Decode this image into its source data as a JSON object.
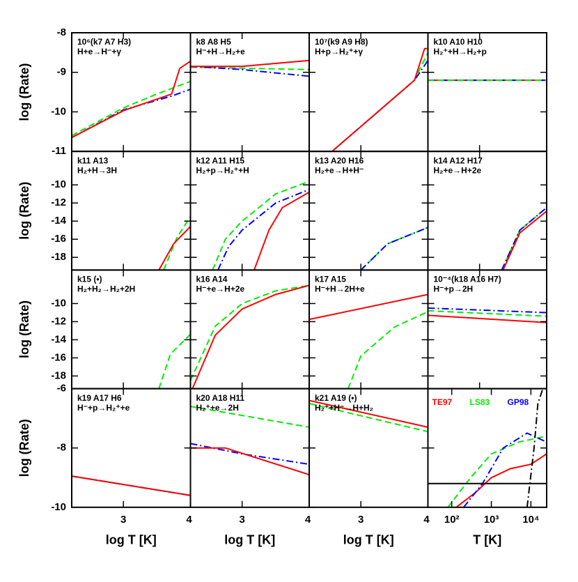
{
  "chart_data": [
    {
      "type": "line",
      "title": "10⁶(k7 A7 H3)",
      "subtitle": "H+e→H⁻+γ",
      "ylabel": "log (Rate)",
      "xlim": [
        2.23,
        4
      ],
      "xticks": [
        3,
        4
      ],
      "ylim": [
        -11,
        -8
      ],
      "yticks": [
        -8,
        -9,
        -10,
        -11
      ],
      "series": [
        {
          "color": "#00ee00",
          "dash": "dashed",
          "x": [
            2.23,
            3,
            3.5,
            4
          ],
          "values": [
            -10.6,
            -9.9,
            -9.55,
            -9.23
          ]
        },
        {
          "color": "#0000ff",
          "dash": "dashdot",
          "x": [
            2.23,
            3,
            3.72,
            4
          ],
          "values": [
            -10.65,
            -9.95,
            -9.6,
            -9.43
          ]
        },
        {
          "color": "#ff0000",
          "dash": "solid",
          "x": [
            2.23,
            3,
            3.72,
            3.84,
            4
          ],
          "values": [
            -10.65,
            -9.97,
            -9.55,
            -8.9,
            -8.72
          ]
        }
      ]
    },
    {
      "type": "line",
      "title": "k8 A8 H5",
      "subtitle": "H⁻+H→H₂+e",
      "xlim": [
        2.23,
        4
      ],
      "xticks": [
        3,
        4
      ],
      "ylim": [
        -11,
        -8
      ],
      "yticks": [
        -8,
        -9,
        -10,
        -11
      ],
      "series": [
        {
          "color": "#00ee00",
          "dash": "dashed",
          "x": [
            2.23,
            4
          ],
          "values": [
            -8.87,
            -8.93
          ]
        },
        {
          "color": "#0000ff",
          "dash": "dashdot",
          "x": [
            2.23,
            3,
            4
          ],
          "values": [
            -8.85,
            -8.93,
            -9.1
          ]
        },
        {
          "color": "#ff0000",
          "dash": "solid",
          "x": [
            2.23,
            3,
            4
          ],
          "values": [
            -8.85,
            -8.85,
            -8.7
          ]
        }
      ]
    },
    {
      "type": "line",
      "title": "10⁷(k9 A9 H8)",
      "subtitle": "H+p→H₂⁺+γ",
      "xlim": [
        2.23,
        4
      ],
      "xticks": [
        3,
        4
      ],
      "ylim": [
        -11,
        -8
      ],
      "yticks": [
        -8,
        -9,
        -10,
        -11
      ],
      "series": [
        {
          "color": "#00ee00",
          "dash": "dashed",
          "x": [
            2.57,
            3.8,
            4
          ],
          "values": [
            -11,
            -9.2,
            -8.5
          ]
        },
        {
          "color": "#0000ff",
          "dash": "dashdot",
          "x": [
            2.57,
            3.8,
            4
          ],
          "values": [
            -11,
            -9.2,
            -8.7
          ]
        },
        {
          "color": "#ff0000",
          "dash": "solid",
          "x": [
            2.57,
            3.8,
            3.95,
            4
          ],
          "values": [
            -11,
            -9.2,
            -8.4,
            -8.4
          ]
        }
      ]
    },
    {
      "type": "line",
      "title": "k10 A10 H10",
      "subtitle": "H₂⁺+H→H₂+p",
      "xlim": [
        2.23,
        4
      ],
      "xticks": [
        3,
        4
      ],
      "ylim": [
        -11,
        -8
      ],
      "yticks": [
        -8,
        -9,
        -10,
        -11
      ],
      "series": [
        {
          "color": "#ff0000",
          "dash": "solid",
          "x": [
            2.23,
            4
          ],
          "values": [
            -9.2,
            -9.2
          ]
        },
        {
          "color": "#0000ff",
          "dash": "dashdot",
          "x": [
            2.23,
            4
          ],
          "values": [
            -9.2,
            -9.2
          ]
        },
        {
          "color": "#00ee00",
          "dash": "dashed",
          "x": [
            2.23,
            4
          ],
          "values": [
            -9.2,
            -9.2
          ]
        }
      ]
    },
    {
      "type": "line",
      "title": "k11 A13",
      "subtitle": "H₂+H→3H",
      "ylabel": "log (Rate)",
      "xlim": [
        2.23,
        4
      ],
      "xticks": [
        3,
        4
      ],
      "ylim": [
        -19.4,
        -6.3
      ],
      "yticks": [
        -10,
        -12,
        -14,
        -16,
        -18
      ],
      "series": [
        {
          "color": "#00ee00",
          "dash": "dashed",
          "x": [
            3.6,
            3.8,
            4
          ],
          "values": [
            -19.4,
            -15.8,
            -13.5
          ]
        },
        {
          "color": "#ff0000",
          "dash": "solid",
          "x": [
            3.53,
            3.75,
            4
          ],
          "values": [
            -19.4,
            -16.5,
            -14.6
          ]
        }
      ]
    },
    {
      "type": "line",
      "title": "k12 A11 H15",
      "subtitle": "H₂+p→H₂⁺+H",
      "xlim": [
        2.23,
        4
      ],
      "xticks": [
        3,
        4
      ],
      "ylim": [
        -19.4,
        -6.3
      ],
      "yticks": [
        -10,
        -12,
        -14,
        -16,
        -18
      ],
      "series": [
        {
          "color": "#00ee00",
          "dash": "dashed",
          "x": [
            2.56,
            2.75,
            3,
            3.5,
            4
          ],
          "values": [
            -19.4,
            -16,
            -14,
            -11,
            -9.6
          ]
        },
        {
          "color": "#0000ff",
          "dash": "dashdot",
          "x": [
            2.64,
            2.8,
            3,
            3.5,
            4
          ],
          "values": [
            -19.4,
            -16.8,
            -15,
            -12,
            -10.5
          ]
        },
        {
          "color": "#ff0000",
          "dash": "solid",
          "x": [
            3.18,
            3.4,
            3.6,
            4
          ],
          "values": [
            -19.4,
            -15,
            -12.5,
            -10.8
          ]
        }
      ]
    },
    {
      "type": "line",
      "title": "k13 A20 H16",
      "subtitle": "H₂+e→H+H⁻",
      "xlim": [
        2.23,
        4
      ],
      "xticks": [
        3,
        4
      ],
      "ylim": [
        -19.4,
        -6.3
      ],
      "yticks": [
        -10,
        -12,
        -14,
        -16,
        -18
      ],
      "series": [
        {
          "color": "#00ee00",
          "dash": "dashed",
          "x": [
            3,
            3.4,
            4
          ],
          "values": [
            -19.4,
            -16.5,
            -14.7
          ]
        },
        {
          "color": "#0000ff",
          "dash": "dashdot",
          "x": [
            3,
            3.4,
            4
          ],
          "values": [
            -19.4,
            -16.5,
            -14.7
          ]
        }
      ]
    },
    {
      "type": "line",
      "title": "k14 A12 H17",
      "subtitle": "H₂+e→H+2e",
      "xlim": [
        2.23,
        4
      ],
      "xticks": [
        3,
        4
      ],
      "ylim": [
        -19.4,
        -6.3
      ],
      "yticks": [
        -10,
        -12,
        -14,
        -16,
        -18
      ],
      "series": [
        {
          "color": "#00ee00",
          "dash": "dashed",
          "x": [
            3.33,
            3.6,
            4
          ],
          "values": [
            -19.4,
            -15,
            -12.5
          ]
        },
        {
          "color": "#0000ff",
          "dash": "dashdot",
          "x": [
            3.33,
            3.6,
            4
          ],
          "values": [
            -19.4,
            -15,
            -12.5
          ]
        },
        {
          "color": "#ff0000",
          "dash": "solid",
          "x": [
            3.35,
            3.6,
            4
          ],
          "values": [
            -19.4,
            -15.3,
            -12.9
          ]
        }
      ]
    },
    {
      "type": "line",
      "title": "k15 (•)",
      "subtitle": "H₂+H₂→H₂+2H",
      "ylabel": "log (Rate)",
      "xlim": [
        2.23,
        4
      ],
      "xticks": [
        3,
        4
      ],
      "ylim": [
        -19.4,
        -6.3
      ],
      "yticks": [
        -10,
        -12,
        -14,
        -16,
        -18
      ],
      "series": [
        {
          "color": "#00ee00",
          "dash": "dashed",
          "x": [
            3.53,
            3.7,
            4
          ],
          "values": [
            -19.4,
            -15.6,
            -13.4
          ]
        }
      ]
    },
    {
      "type": "line",
      "title": "k16 A14",
      "subtitle": "H⁻+e→H+2e",
      "xlim": [
        2.23,
        4
      ],
      "xticks": [
        3,
        4
      ],
      "ylim": [
        -19.4,
        -6.3
      ],
      "yticks": [
        -10,
        -12,
        -14,
        -16,
        -18
      ],
      "series": [
        {
          "color": "#00ee00",
          "dash": "dashed",
          "x": [
            2.23,
            2.6,
            3,
            3.5,
            4
          ],
          "values": [
            -18.5,
            -12.5,
            -10,
            -8.6,
            -8
          ]
        },
        {
          "color": "#ff0000",
          "dash": "solid",
          "x": [
            2.26,
            2.6,
            3,
            3.5,
            4
          ],
          "values": [
            -19.4,
            -13.5,
            -10.6,
            -9,
            -8
          ]
        }
      ]
    },
    {
      "type": "line",
      "title": "k17 A15",
      "subtitle": "H⁻+H→2H+e",
      "xlim": [
        2.23,
        4
      ],
      "xticks": [
        3,
        4
      ],
      "ylim": [
        -19.4,
        -6.3
      ],
      "yticks": [
        -10,
        -12,
        -14,
        -16,
        -18
      ],
      "series": [
        {
          "color": "#ff0000",
          "dash": "solid",
          "x": [
            2.23,
            4
          ],
          "values": [
            -11.76,
            -9
          ]
        },
        {
          "color": "#00ee00",
          "dash": "dashed",
          "x": [
            2.81,
            3,
            3.5,
            4
          ],
          "values": [
            -19.4,
            -15.8,
            -12.6,
            -10.9
          ]
        }
      ]
    },
    {
      "type": "line",
      "title": "10⁻⁴(k18 A16 H7)",
      "subtitle": "H⁻+p→2H",
      "xlim": [
        2.23,
        4
      ],
      "xticks": [
        3,
        4
      ],
      "ylim": [
        -19.4,
        -6.3
      ],
      "yticks": [
        -10,
        -12,
        -14,
        -16,
        -18
      ],
      "series": [
        {
          "color": "#0000ff",
          "dash": "dashdot",
          "x": [
            2.23,
            4
          ],
          "values": [
            -10.5,
            -11
          ]
        },
        {
          "color": "#00ee00",
          "dash": "dashed",
          "x": [
            2.23,
            4
          ],
          "values": [
            -10.8,
            -11.4
          ]
        },
        {
          "color": "#ff0000",
          "dash": "solid",
          "x": [
            2.23,
            4
          ],
          "values": [
            -11.3,
            -12.1
          ]
        }
      ]
    },
    {
      "type": "line",
      "title": "k19 A17 H6",
      "subtitle": "H⁻+p→H₂⁺+e",
      "ylabel": "log (Rate)",
      "xlabel": "log T [K]",
      "xlim": [
        2.23,
        4
      ],
      "xticks": [
        3,
        4
      ],
      "ylim": [
        -10,
        -6
      ],
      "yticks": [
        -10,
        -8,
        -6
      ],
      "series": [
        {
          "color": "#00ee00",
          "dash": "dashed",
          "x": [
            2.23,
            4
          ],
          "values": [
            -8.95,
            -9.6
          ]
        },
        {
          "color": "#0000ff",
          "dash": "dashdot",
          "x": [
            2.23,
            4
          ],
          "values": [
            -8.95,
            -9.6
          ]
        },
        {
          "color": "#ff0000",
          "dash": "solid",
          "x": [
            2.23,
            4
          ],
          "values": [
            -8.95,
            -9.6
          ]
        }
      ]
    },
    {
      "type": "line",
      "title": "k20 A18 H11",
      "subtitle": "H₂⁺+e→2H",
      "xlabel": "log T [K]",
      "xlim": [
        2.23,
        4
      ],
      "xticks": [
        3,
        4
      ],
      "ylim": [
        -10,
        -6
      ],
      "yticks": [
        -10,
        -8,
        -6
      ],
      "series": [
        {
          "color": "#00ee00",
          "dash": "dashed",
          "x": [
            2.23,
            4
          ],
          "values": [
            -6.6,
            -7.3
          ]
        },
        {
          "color": "#0000ff",
          "dash": "dashdot",
          "x": [
            2.23,
            3,
            4
          ],
          "values": [
            -7.85,
            -8.2,
            -8.55
          ]
        },
        {
          "color": "#ff0000",
          "dash": "solid",
          "x": [
            2.23,
            2.75,
            4
          ],
          "values": [
            -8,
            -8,
            -8.9
          ]
        }
      ]
    },
    {
      "type": "line",
      "title": "k21 A19 (•)",
      "subtitle": "H₂⁺+H⁻→H+H₂",
      "xlabel": "log T [K]",
      "xlim": [
        2.23,
        4
      ],
      "xticks": [
        3,
        4
      ],
      "ylim": [
        -10,
        -6
      ],
      "yticks": [
        -10,
        -8,
        -6
      ],
      "series": [
        {
          "color": "#ff0000",
          "dash": "solid",
          "x": [
            2.23,
            4
          ],
          "values": [
            -6.4,
            -7.3
          ]
        },
        {
          "color": "#00ee00",
          "dash": "dashed",
          "x": [
            2.23,
            4
          ],
          "values": [
            -6.5,
            -7.45
          ]
        }
      ]
    },
    {
      "type": "line",
      "xlabel": "T [K]",
      "xscale": "log",
      "xlim": [
        25,
        25000
      ],
      "xticks": [
        {
          "value": 100,
          "label": "10²"
        },
        {
          "value": 1000,
          "label": "10³"
        },
        {
          "value": 10000,
          "label": "10⁴"
        }
      ],
      "ylim": [
        -10,
        -6
      ],
      "yticks": [
        -10,
        -8,
        -6
      ],
      "series": [
        {
          "name": "TE97",
          "color": "#ff0000",
          "dash": "solid",
          "x": [
            130,
            400,
            1000,
            3000,
            10000,
            25000
          ],
          "values": [
            -10,
            -9.5,
            -9,
            -8.7,
            -8.55,
            -8.2
          ]
        },
        {
          "name": "LS83",
          "color": "#00ee00",
          "dash": "dashed",
          "x": [
            80,
            300,
            1000,
            5000,
            25000
          ],
          "values": [
            -10,
            -9,
            -8.2,
            -7.8,
            -7.6
          ]
        },
        {
          "name": "GP98",
          "color": "#0000ff",
          "dash": "dashdot",
          "x": [
            200,
            600,
            2000,
            8000,
            25000
          ],
          "values": [
            -10,
            -9.2,
            -8,
            -7.5,
            -7.8
          ]
        },
        {
          "color": "#000000",
          "dash": "solid",
          "x": [
            25,
            25000
          ],
          "values": [
            -9.2,
            -9.2
          ]
        },
        {
          "color": "#000000",
          "dash": "dashdot",
          "x": [
            8000,
            12000,
            15000,
            20000
          ],
          "values": [
            -10,
            -8,
            -6.5,
            -6
          ]
        }
      ]
    }
  ]
}
